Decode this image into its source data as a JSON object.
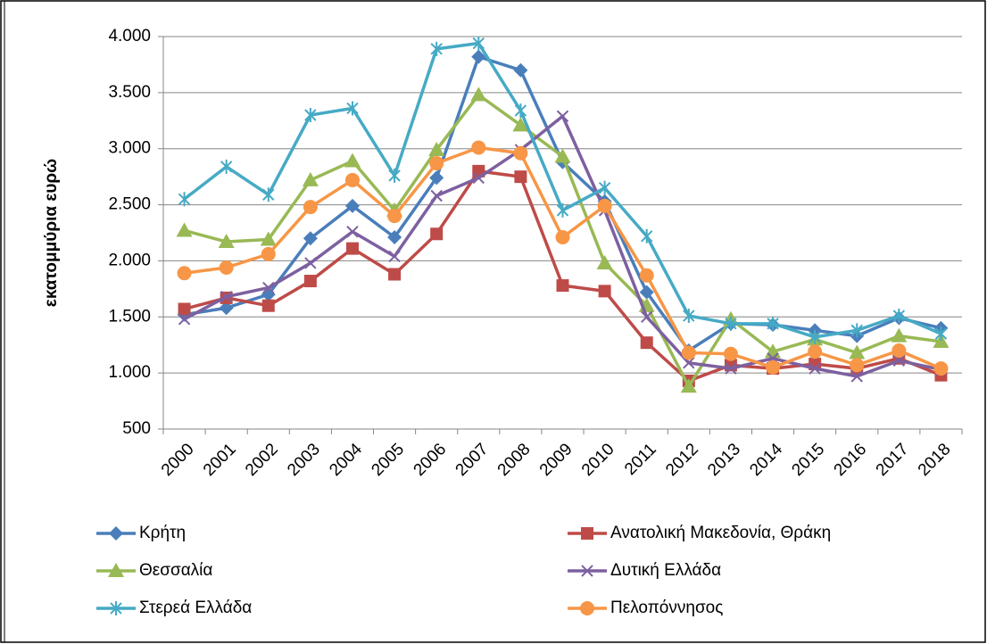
{
  "chart_data": {
    "type": "line",
    "ylabel": "εκατομμύρια ευρώ",
    "categories": [
      "2000",
      "2001",
      "2002",
      "2003",
      "2004",
      "2005",
      "2006",
      "2007",
      "2008",
      "2009",
      "2010",
      "2011",
      "2012",
      "2013",
      "2014",
      "2015",
      "2016",
      "2017",
      "2018"
    ],
    "ylim": [
      500,
      4000
    ],
    "yticks": [
      500,
      {
        "value": 1000,
        "label": "1.000"
      },
      {
        "value": 1500,
        "label": "1.500"
      },
      {
        "value": 2000,
        "label": "2.000"
      },
      {
        "value": 2500,
        "label": "2.500"
      },
      {
        "value": 3000,
        "label": "3.000"
      },
      {
        "value": 3500,
        "label": "3.500"
      },
      {
        "value": 4000,
        "label": "4.000"
      }
    ],
    "grid": true,
    "legend": "bottom",
    "series": [
      {
        "name": "Κρήτη",
        "color": "#4a7ebb",
        "marker": "diamond",
        "values": [
          1520,
          1580,
          1700,
          2200,
          2490,
          2210,
          2740,
          3820,
          3700,
          2880,
          2530,
          1720,
          1200,
          1440,
          1430,
          1380,
          1330,
          1490,
          1400
        ]
      },
      {
        "name": "Ανατολική Μακεδονία, Θράκη",
        "color": "#be4b48",
        "marker": "square",
        "values": [
          1570,
          1670,
          1600,
          1820,
          2110,
          1880,
          2240,
          2800,
          2750,
          1780,
          1730,
          1270,
          930,
          1070,
          1040,
          1080,
          1040,
          1130,
          980
        ]
      },
      {
        "name": "Θεσσαλία",
        "color": "#98b954",
        "marker": "triangle",
        "values": [
          2270,
          2170,
          2190,
          2720,
          2890,
          2450,
          2990,
          3480,
          3210,
          2930,
          1980,
          1600,
          880,
          1480,
          1190,
          1300,
          1180,
          1330,
          1280
        ]
      },
      {
        "name": "Δυτική Ελλάδα",
        "color": "#7d60a0",
        "marker": "x",
        "values": [
          1480,
          1680,
          1760,
          1980,
          2260,
          2040,
          2580,
          2740,
          2990,
          3290,
          2450,
          1500,
          1090,
          1040,
          1130,
          1040,
          970,
          1110,
          1030
        ]
      },
      {
        "name": "Στερεά Ελλάδα",
        "color": "#46aac5",
        "marker": "star",
        "values": [
          2550,
          2840,
          2590,
          3300,
          3360,
          2760,
          3890,
          3940,
          3340,
          2450,
          2650,
          2220,
          1510,
          1440,
          1440,
          1320,
          1380,
          1510,
          1350
        ]
      },
      {
        "name": "Πελοπόννησος",
        "color": "#f79646",
        "marker": "circle",
        "values": [
          1890,
          1940,
          2060,
          2480,
          2720,
          2400,
          2870,
          3010,
          2960,
          2210,
          2490,
          1870,
          1180,
          1170,
          1050,
          1190,
          1070,
          1200,
          1040
        ]
      }
    ]
  }
}
